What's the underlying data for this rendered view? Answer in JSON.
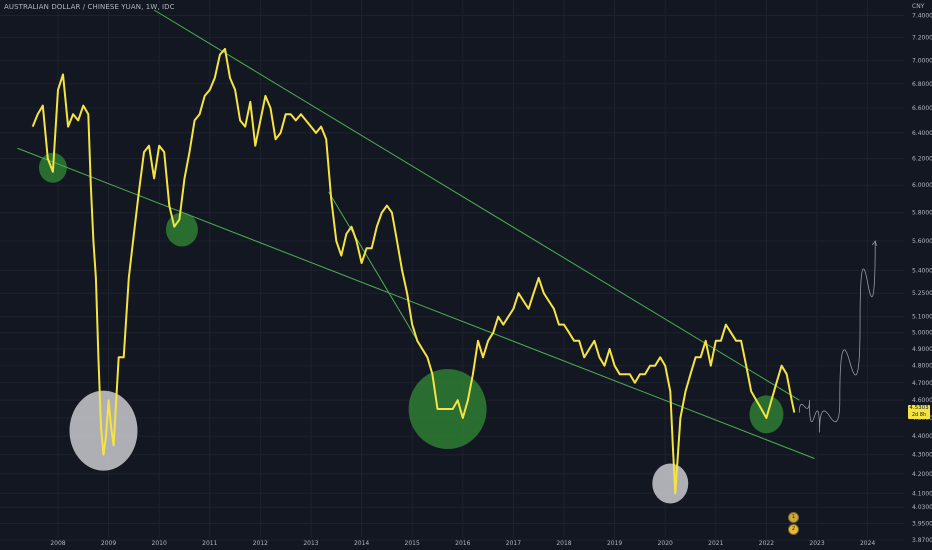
{
  "header": {
    "symbol_title": "AUSTRALIAN DOLLAR / CHINESE YUAN, 1W, IDC",
    "unit": "CNY"
  },
  "price_tag": {
    "value": "4.5303",
    "countdown": "2d 8h"
  },
  "badges": [
    "1",
    "2"
  ],
  "colors": {
    "background": "#131722",
    "price_line": "#f5e342",
    "trendline": "#4caf50",
    "green_highlight": "#2e7d32",
    "grey_highlight": "#c0c0c4",
    "projection": "#9598a1"
  },
  "chart_data": {
    "type": "line",
    "title": "AUSTRALIAN DOLLAR / CHINESE YUAN, 1W, IDC",
    "xlabel": "",
    "ylabel": "CNY",
    "y_scale": "log",
    "ylim": [
      3.87,
      7.45
    ],
    "xlim": [
      2007.25,
      2024.6
    ],
    "grid": true,
    "x_ticks": [
      "2008",
      "2009",
      "2010",
      "2011",
      "2012",
      "2013",
      "2014",
      "2015",
      "2016",
      "2017",
      "2018",
      "2019",
      "2020",
      "2021",
      "2022",
      "2023",
      "2024"
    ],
    "y_ticks": [
      "7.4000",
      "7.2000",
      "7.0000",
      "6.8000",
      "6.6000",
      "6.4000",
      "6.2000",
      "6.0000",
      "5.8000",
      "5.6000",
      "5.4000",
      "5.2500",
      "5.1000",
      "5.0000",
      "4.9000",
      "4.8000",
      "4.7000",
      "4.6000",
      "4.5000",
      "4.4000",
      "4.3000",
      "4.2000",
      "4.1000",
      "4.0300",
      "3.9500",
      "3.8700"
    ],
    "series": [
      {
        "x": [
          2007.5,
          2007.6,
          2007.7,
          2007.8,
          2007.9,
          2008.0,
          2008.1,
          2008.2,
          2008.3,
          2008.4,
          2008.5,
          2008.6,
          2008.65,
          2008.7,
          2008.75,
          2008.8,
          2008.85,
          2008.9,
          2008.95,
          2009.0,
          2009.05,
          2009.1,
          2009.2,
          2009.3,
          2009.4,
          2009.5,
          2009.6,
          2009.7,
          2009.8,
          2009.9,
          2010.0,
          2010.1,
          2010.2,
          2010.3,
          2010.4,
          2010.5,
          2010.6,
          2010.7,
          2010.8,
          2010.9,
          2011.0,
          2011.1,
          2011.2,
          2011.3,
          2011.4,
          2011.5,
          2011.6,
          2011.7,
          2011.8,
          2011.9,
          2012.0,
          2012.1,
          2012.2,
          2012.3,
          2012.4,
          2012.5,
          2012.6,
          2012.7,
          2012.8,
          2012.9,
          2013.0,
          2013.1,
          2013.2,
          2013.3,
          2013.4,
          2013.5,
          2013.6,
          2013.7,
          2013.8,
          2013.9,
          2014.0,
          2014.1,
          2014.2,
          2014.3,
          2014.4,
          2014.5,
          2014.6,
          2014.7,
          2014.8,
          2014.9,
          2015.0,
          2015.1,
          2015.2,
          2015.3,
          2015.4,
          2015.5,
          2015.6,
          2015.7,
          2015.8,
          2015.9,
          2016.0,
          2016.1,
          2016.2,
          2016.3,
          2016.4,
          2016.5,
          2016.6,
          2016.7,
          2016.8,
          2016.9,
          2017.0,
          2017.1,
          2017.2,
          2017.3,
          2017.4,
          2017.5,
          2017.6,
          2017.7,
          2017.8,
          2017.9,
          2018.0,
          2018.1,
          2018.2,
          2018.3,
          2018.4,
          2018.5,
          2018.6,
          2018.7,
          2018.8,
          2018.9,
          2019.0,
          2019.1,
          2019.2,
          2019.3,
          2019.4,
          2019.5,
          2019.6,
          2019.7,
          2019.8,
          2019.9,
          2020.0,
          2020.1,
          2020.15,
          2020.2,
          2020.25,
          2020.3,
          2020.4,
          2020.5,
          2020.6,
          2020.7,
          2020.8,
          2020.9,
          2021.0,
          2021.1,
          2021.2,
          2021.3,
          2021.4,
          2021.5,
          2021.6,
          2021.7,
          2021.8,
          2021.9,
          2022.0,
          2022.1,
          2022.2,
          2022.3,
          2022.4,
          2022.5,
          2022.55
        ],
        "y": [
          6.45,
          6.55,
          6.62,
          6.2,
          6.1,
          6.75,
          6.88,
          6.45,
          6.55,
          6.5,
          6.62,
          6.55,
          6.0,
          5.6,
          5.35,
          4.85,
          4.45,
          4.3,
          4.4,
          4.6,
          4.45,
          4.35,
          4.85,
          4.85,
          5.35,
          5.65,
          5.95,
          6.25,
          6.3,
          6.05,
          6.3,
          6.25,
          5.85,
          5.7,
          5.75,
          6.05,
          6.25,
          6.5,
          6.55,
          6.7,
          6.75,
          6.85,
          7.05,
          7.1,
          6.85,
          6.75,
          6.5,
          6.45,
          6.65,
          6.3,
          6.5,
          6.7,
          6.6,
          6.35,
          6.4,
          6.55,
          6.55,
          6.5,
          6.55,
          6.5,
          6.45,
          6.4,
          6.45,
          6.35,
          5.9,
          5.6,
          5.5,
          5.65,
          5.7,
          5.6,
          5.45,
          5.55,
          5.55,
          5.7,
          5.8,
          5.85,
          5.8,
          5.6,
          5.4,
          5.25,
          5.05,
          4.95,
          4.9,
          4.85,
          4.75,
          4.55,
          4.55,
          4.55,
          4.55,
          4.6,
          4.5,
          4.6,
          4.75,
          4.95,
          4.85,
          4.95,
          5.0,
          5.1,
          5.05,
          5.1,
          5.15,
          5.25,
          5.2,
          5.15,
          5.25,
          5.35,
          5.25,
          5.2,
          5.15,
          5.05,
          5.05,
          5.0,
          4.95,
          4.95,
          4.85,
          4.9,
          4.95,
          4.85,
          4.8,
          4.9,
          4.8,
          4.75,
          4.75,
          4.75,
          4.7,
          4.75,
          4.75,
          4.8,
          4.8,
          4.85,
          4.8,
          4.65,
          4.35,
          4.1,
          4.3,
          4.5,
          4.65,
          4.75,
          4.85,
          4.85,
          4.95,
          4.8,
          4.95,
          4.95,
          5.05,
          5.0,
          4.95,
          4.95,
          4.8,
          4.65,
          4.6,
          4.55,
          4.5,
          4.6,
          4.7,
          4.8,
          4.75,
          4.6,
          4.53
        ]
      }
    ],
    "annotations": {
      "trendlines": [
        {
          "x": [
            2007.2,
            2022.95
          ],
          "y": [
            6.28,
            4.28
          ]
        },
        {
          "x": [
            2009.9,
            2022.65
          ],
          "y": [
            7.45,
            4.6
          ]
        },
        {
          "x": [
            2013.35,
            2015.3
          ],
          "y": [
            5.95,
            4.85
          ]
        }
      ],
      "green_circles": [
        {
          "x": 2007.9,
          "y": 6.13
        },
        {
          "x": 2010.45,
          "y": 5.68
        },
        {
          "x": 2015.7,
          "y": 4.55
        },
        {
          "x": 2022.0,
          "y": 4.52
        }
      ],
      "grey_circles": [
        {
          "x": 2008.9,
          "y": 4.43
        },
        {
          "x": 2020.1,
          "y": 4.15
        }
      ],
      "projection": {
        "x": [
          2022.65,
          2022.85,
          2023.05,
          2023.45,
          2023.85,
          2024.15
        ],
        "y": [
          4.53,
          4.6,
          4.42,
          4.6,
          5.05,
          5.6
        ]
      }
    }
  }
}
